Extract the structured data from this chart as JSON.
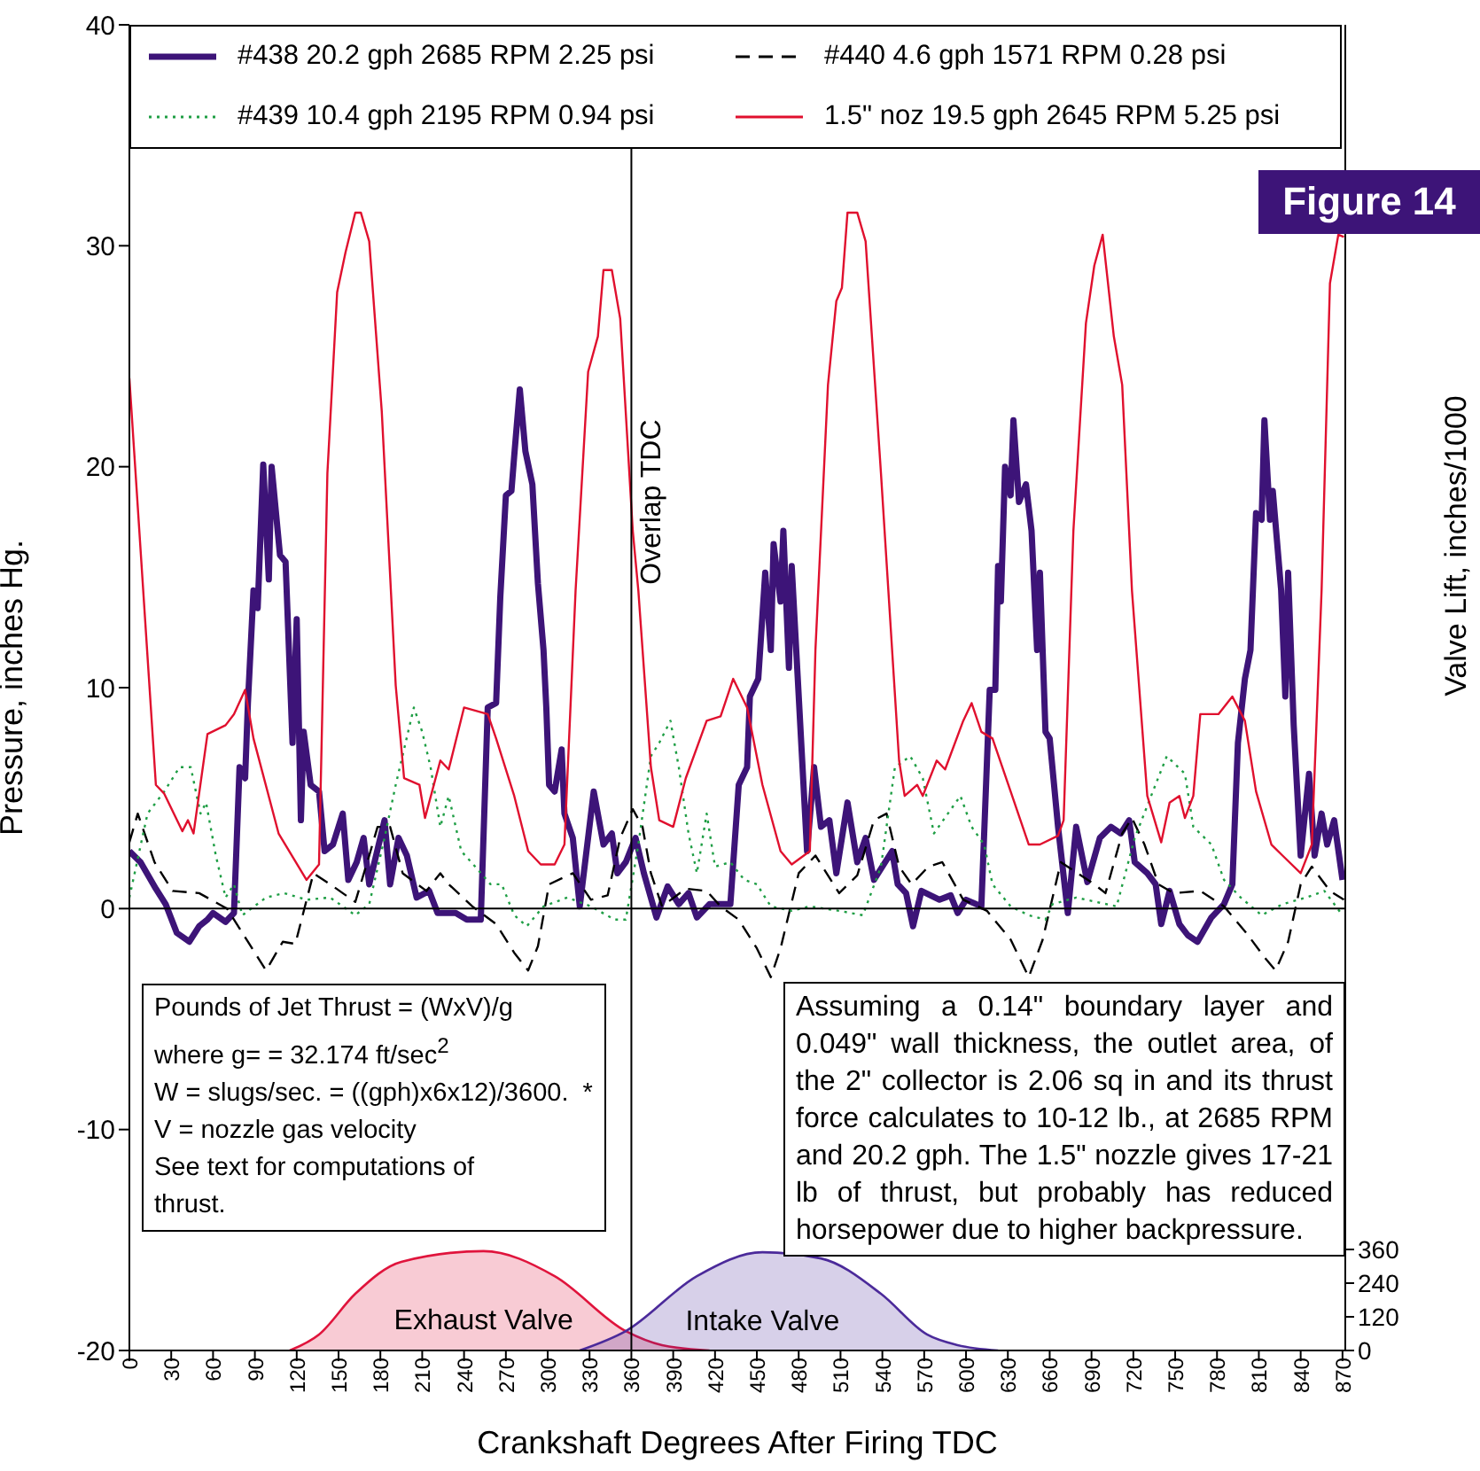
{
  "chart_data": {
    "type": "line",
    "title": "Figure 14",
    "xlabel": "Crankshaft Degrees After Firing TDC",
    "ylabel": "Pressure, inches Hg.",
    "y2label": "Valve Lift, inches/1000",
    "xlim": [
      0,
      872
    ],
    "xticks": [
      0,
      30,
      60,
      90,
      120,
      150,
      180,
      210,
      240,
      270,
      300,
      330,
      360,
      390,
      420,
      450,
      480,
      510,
      540,
      570,
      600,
      630,
      660,
      690,
      720,
      750,
      780,
      810,
      840,
      870
    ],
    "ylim": [
      -20,
      40
    ],
    "yticks": [
      -20,
      -10,
      0,
      10,
      20,
      30,
      40
    ],
    "y2lim": [
      0,
      4724
    ],
    "y2ticks": [
      0,
      120,
      240,
      360
    ],
    "legend": "top",
    "grid": false,
    "ref_lines": [
      {
        "axis": "x",
        "value": 360,
        "label": "Overlap TDC"
      },
      {
        "axis": "y",
        "value": 0
      }
    ],
    "annotations": [
      "Pounds of Jet Thrust = (WxV)/g\nwhere g= = 32.174 ft/sec$^{2}$\nW = slugs/sec. = ((gph)x6x12)/3600.  *\nV = nozzle gas velocity\nSee text for computations of\nthrust.",
      "Assuming a 0.14\" boundary layer and 0.049\" wall thickness, the outlet area, of the 2\" collector is 2.06 sq in and its thrust force calculates to 10-12 lb., at 2685 RPM and 20.2 gph.  The 1.5\" nozzle gives 17-21 lb of thrust, but probably has reduced horsepower due to higher backpressure."
    ],
    "series": [
      {
        "name": "#438  20.2 gph 2685 RPM 2.25 psi",
        "color": "#3d1478",
        "line_style": "solid",
        "x": [
          0,
          8,
          19,
          26,
          34,
          43,
          50,
          56,
          60,
          69,
          75,
          79,
          83,
          85,
          89,
          92,
          96,
          100,
          102,
          108,
          112,
          117,
          120,
          123,
          125,
          130,
          136,
          140,
          146,
          153,
          157,
          163,
          168,
          172,
          183,
          187,
          193,
          199,
          206,
          215,
          221,
          234,
          242,
          252,
          257,
          263,
          266,
          270,
          274,
          276,
          280,
          284,
          289,
          293,
          297,
          299,
          301,
          305,
          310,
          312,
          318,
          323,
          333,
          340,
          346,
          350,
          356,
          363,
          369,
          378,
          386,
          394,
          401,
          407,
          416,
          424,
          431,
          437,
          443,
          445,
          451,
          456,
          460,
          462,
          467,
          469,
          473,
          475,
          486,
          491,
          496,
          502,
          507,
          515,
          522,
          528,
          534,
          547,
          551,
          557,
          562,
          568,
          581,
          589,
          594,
          600,
          611,
          617,
          621,
          623,
          625,
          628,
          632,
          634,
          638,
          643,
          647,
          651,
          653,
          657,
          660,
          666,
          673,
          679,
          687,
          696,
          704,
          711,
          717,
          721,
          730,
          736,
          740,
          746,
          753,
          759,
          766,
          776,
          785,
          791,
          795,
          800,
          804,
          808,
          812,
          814,
          818,
          820,
          826,
          829,
          831,
          835,
          840,
          846,
          850,
          855,
          859,
          864,
          870
        ],
        "values": [
          2.6,
          2.1,
          0.9,
          0.2,
          -1.1,
          -1.5,
          -0.8,
          -0.5,
          -0.2,
          -0.6,
          -0.2,
          6.4,
          5.9,
          9.3,
          14.4,
          13.6,
          20.1,
          14.9,
          20,
          16,
          15.7,
          7.5,
          13.1,
          4,
          8,
          5.6,
          5.3,
          2.6,
          2.9,
          4.3,
          1.3,
          2.1,
          3.2,
          1.1,
          4,
          1.1,
          3.2,
          2.4,
          0.5,
          0.8,
          -0.2,
          -0.2,
          -0.5,
          -0.5,
          9.1,
          9.3,
          14.1,
          18.7,
          18.9,
          20.5,
          23.5,
          20.7,
          19.2,
          14.7,
          11.7,
          9.1,
          5.6,
          5.3,
          7.2,
          4.3,
          3.2,
          0.1,
          5.3,
          2.9,
          3.4,
          1.6,
          2.1,
          3.2,
          1.6,
          -0.4,
          1,
          0.2,
          0.7,
          -0.4,
          0.2,
          0.2,
          0.2,
          5.6,
          6.4,
          9.6,
          10.4,
          15.2,
          11.7,
          16.5,
          13.9,
          17.1,
          10.9,
          15.5,
          2.6,
          6.4,
          3.7,
          4,
          1.6,
          4.8,
          2.1,
          3.2,
          1.3,
          2.6,
          1.1,
          0.7,
          -0.8,
          0.8,
          0.4,
          0.6,
          -0.2,
          0.4,
          0.1,
          9.9,
          9.9,
          15.5,
          13.9,
          20,
          18.7,
          22.1,
          18.4,
          19.2,
          17.1,
          11.7,
          15.2,
          8,
          7.7,
          3.7,
          -0.2,
          3.7,
          1.2,
          3.2,
          3.7,
          3.4,
          4,
          2.1,
          1.6,
          1.1,
          -0.7,
          0.8,
          -0.7,
          -1.2,
          -1.5,
          -0.4,
          0.2,
          1.1,
          7.5,
          10.4,
          11.7,
          17.9,
          17.6,
          22.1,
          17.6,
          18.9,
          14.4,
          9.6,
          15.2,
          8.3,
          2.4,
          6.1,
          2.4,
          4.3,
          2.9,
          4,
          1.3
        ]
      },
      {
        "name": "#440 4.6 gph 1571 RPM 0.28 psi",
        "color": "#000000",
        "line_style": "dashed",
        "x": [
          0,
          6,
          18,
          31,
          50,
          70,
          85,
          98,
          110,
          119,
          132,
          144,
          162,
          172,
          178,
          187,
          196,
          213,
          223,
          229,
          246,
          263,
          276,
          286,
          293,
          301,
          318,
          331,
          343,
          352,
          361,
          368,
          374,
          382,
          399,
          414,
          424,
          437,
          450,
          460,
          467,
          480,
          492,
          509,
          522,
          534,
          543,
          552,
          561,
          573,
          583,
          598,
          615,
          632,
          645,
          655,
          668,
          692,
          700,
          712,
          719,
          728,
          738,
          749,
          768,
          785,
          801,
          814,
          822,
          831,
          840,
          848,
          861,
          871
        ],
        "values": [
          3,
          4.3,
          2.1,
          0.8,
          0.7,
          0,
          -1.5,
          -2.8,
          -1.5,
          -1.6,
          1.6,
          1.1,
          0.3,
          2.4,
          3.7,
          3.7,
          1.6,
          0.8,
          1.6,
          1.1,
          0.1,
          -0.7,
          -2,
          -2.8,
          -1.7,
          1.1,
          1.6,
          0.4,
          0.6,
          3.2,
          4.5,
          3.7,
          1.6,
          0.1,
          0.9,
          0.8,
          0.1,
          -0.5,
          -1.8,
          -3.1,
          -1.8,
          1.6,
          2.4,
          0.7,
          1.5,
          4,
          4.3,
          1.9,
          1.1,
          1.9,
          2.1,
          0.4,
          -0.1,
          -1.4,
          -3.1,
          -1.4,
          2.1,
          1.1,
          0.7,
          3.4,
          4.1,
          2.9,
          1.1,
          0.7,
          0.8,
          0.1,
          -1.1,
          -2.2,
          -2.8,
          -1.5,
          1.1,
          1.9,
          0.8,
          0.4
        ]
      },
      {
        "name": "#439  10.4 gph 2195 RPM 0.94 psi",
        "color": "#1f9e45",
        "line_style": "dotted",
        "x": [
          0,
          13,
          25,
          36,
          44,
          51,
          55,
          62,
          69,
          75,
          81,
          98,
          111,
          127,
          144,
          162,
          172,
          183,
          191,
          204,
          210,
          216,
          223,
          229,
          238,
          248,
          259,
          267,
          276,
          285,
          297,
          314,
          331,
          348,
          356,
          365,
          374,
          380,
          388,
          394,
          401,
          407,
          414,
          420,
          431,
          441,
          450,
          460,
          475,
          488,
          509,
          526,
          539,
          549,
          560,
          569,
          577,
          587,
          596,
          604,
          613,
          619,
          632,
          645,
          657,
          662,
          679,
          708,
          721,
          734,
          744,
          757,
          763,
          776,
          785,
          797,
          812,
          827,
          844,
          857,
          870
        ],
        "values": [
          0.5,
          4.3,
          5.3,
          6.4,
          6.4,
          4.3,
          4.8,
          2.4,
          0.5,
          1.1,
          -0.3,
          0.5,
          0.7,
          0.4,
          0.5,
          -0.3,
          0.2,
          3.2,
          5.6,
          9.1,
          8,
          6.4,
          3.7,
          5.1,
          2.6,
          1.9,
          1.1,
          1.1,
          -0.3,
          -0.8,
          0.1,
          0.5,
          0.1,
          -0.5,
          -0.5,
          2.9,
          6.9,
          7.5,
          8.5,
          6.4,
          3.4,
          1.6,
          4.3,
          1.9,
          2.1,
          1.3,
          1.1,
          0.1,
          -0.1,
          0.1,
          -0.1,
          -0.3,
          1.9,
          6.4,
          6.9,
          5.9,
          3.4,
          4.3,
          5.1,
          3.7,
          2.9,
          1.1,
          0.1,
          -0.3,
          -0.5,
          0.2,
          0.5,
          0.1,
          3.2,
          5.3,
          6.9,
          6.1,
          3.7,
          2.9,
          1.3,
          0.5,
          -0.3,
          0.2,
          0.5,
          0.8,
          -0.3
        ]
      },
      {
        "name": "1.5\" noz 19.5 gph 2645 RPM 5.25 psi",
        "color": "#e0102e",
        "line_style": "solid",
        "x": [
          0,
          19,
          25,
          38,
          42,
          46,
          56,
          69,
          75,
          83,
          89,
          107,
          127,
          136,
          142,
          149,
          155,
          162,
          166,
          172,
          181,
          191,
          197,
          208,
          212,
          223,
          229,
          240,
          257,
          263,
          276,
          286,
          295,
          305,
          312,
          320,
          329,
          336,
          340,
          346,
          352,
          361,
          365,
          374,
          380,
          390,
          399,
          414,
          424,
          433,
          443,
          454,
          467,
          475,
          488,
          492,
          501,
          507,
          511,
          515,
          522,
          528,
          539,
          552,
          556,
          565,
          569,
          579,
          585,
          598,
          604,
          611,
          619,
          632,
          645,
          653,
          666,
          670,
          677,
          686,
          692,
          698,
          706,
          712,
          719,
          730,
          740,
          746,
          753,
          757,
          763,
          768,
          781,
          791,
          800,
          808,
          819,
          827,
          840,
          848,
          855,
          861,
          867,
          871
        ],
        "values": [
          24,
          5.6,
          5.2,
          3.5,
          4,
          3.4,
          7.9,
          8.3,
          8.8,
          9.9,
          7.7,
          3.4,
          1.3,
          2,
          19.7,
          27.9,
          29.7,
          31.5,
          31.5,
          30.2,
          22.5,
          10.1,
          5.9,
          5.6,
          4.1,
          6.7,
          6.3,
          9.1,
          8.8,
          7.7,
          5.1,
          2.6,
          2,
          2,
          2.9,
          14.4,
          24.3,
          25.9,
          28.9,
          28.9,
          26.7,
          17.1,
          14.4,
          6.4,
          4,
          3.7,
          5.9,
          8.5,
          8.7,
          10.4,
          9.1,
          5.6,
          2.6,
          2,
          2.6,
          11.7,
          23.7,
          27.5,
          28.1,
          31.5,
          31.5,
          30.2,
          19.7,
          6.7,
          5.1,
          5.6,
          5.1,
          6.7,
          6.3,
          8.5,
          9.3,
          8,
          7.7,
          5.3,
          2.9,
          2.9,
          3.3,
          4,
          17.1,
          26.5,
          29.1,
          30.5,
          25.9,
          23.7,
          14.4,
          5.1,
          3,
          4.8,
          5.1,
          4.1,
          5.1,
          8.8,
          8.8,
          9.6,
          8.5,
          5.3,
          2.9,
          2.4,
          1.6,
          2.9,
          14.4,
          28.3,
          30.5,
          30.4
        ]
      },
      {
        "name": "Exhaust Valve",
        "type": "area",
        "axis": "y2",
        "color": "#e0143c",
        "x": [
          115,
          136,
          162,
          195,
          254,
          305,
          356,
          382,
          416
        ],
        "values": [
          0,
          57,
          202,
          316,
          354,
          265,
          69,
          19,
          0
        ]
      },
      {
        "name": "Intake Valve",
        "type": "area",
        "axis": "y2",
        "color": "#4b2a9a",
        "x": [
          323,
          356,
          407,
          454,
          496,
          539,
          572,
          594,
          623
        ],
        "values": [
          0,
          69,
          265,
          350,
          328,
          202,
          57,
          19,
          0
        ]
      }
    ]
  }
}
